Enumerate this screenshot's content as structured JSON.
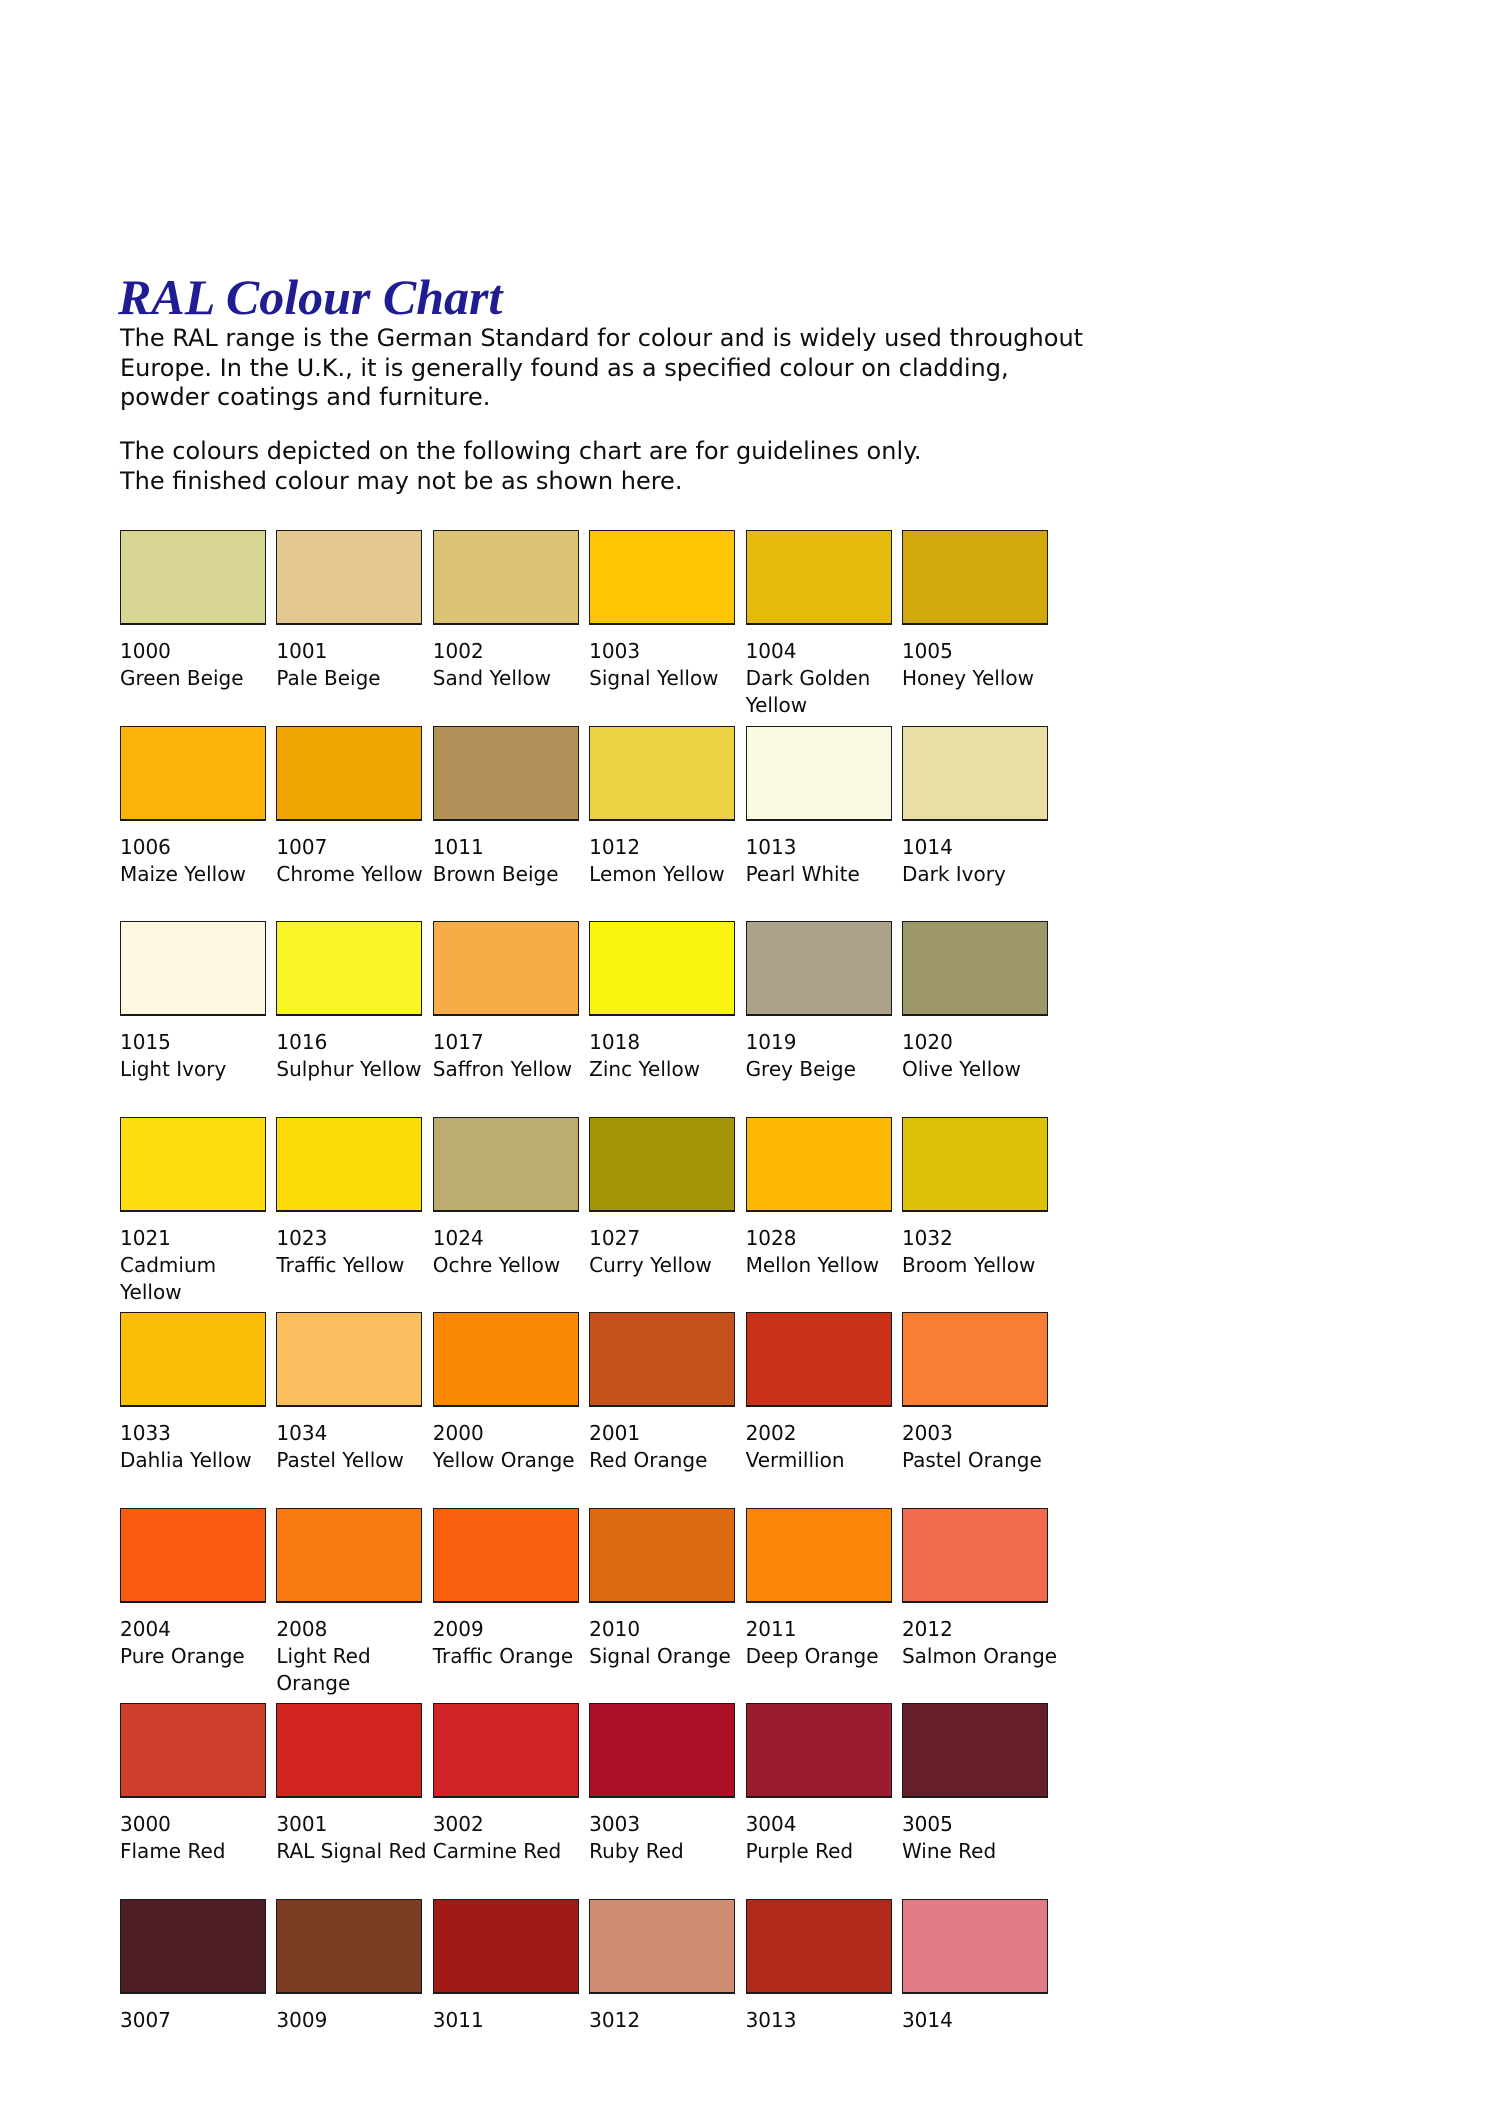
{
  "document": {
    "title": "RAL Colour Chart",
    "title_color": "#201D93",
    "intro": "The RAL range is the German Standard for colour and is widely used throughout\nEurope. In the U.K., it is generally found as a specified colour on cladding,\npowder coatings and furniture.",
    "note": "The colours depicted on the following chart are for guidelines only.\nThe finished colour may not be as shown here."
  },
  "palette": {
    "columns": 6,
    "swatch_border_color": "#1a1a1a",
    "swatches": [
      {
        "code": "1000",
        "name": "Green Beige",
        "color": "#D8D693"
      },
      {
        "code": "1001",
        "name": "Pale Beige",
        "color": "#E2C791"
      },
      {
        "code": "1002",
        "name": "Sand Yellow",
        "color": "#DDC375"
      },
      {
        "code": "1003",
        "name": "Signal Yellow",
        "color": "#FEC503"
      },
      {
        "code": "1004",
        "name": "Dark Golden Yellow",
        "color": "#E4BA0D"
      },
      {
        "code": "1005",
        "name": "Honey Yellow",
        "color": "#D2A90D"
      },
      {
        "code": "1006",
        "name": "Maize Yellow",
        "color": "#FAB306"
      },
      {
        "code": "1007",
        "name": "Chrome Yellow",
        "color": "#EFA603"
      },
      {
        "code": "1011",
        "name": "Brown Beige",
        "color": "#B5915A"
      },
      {
        "code": "1012",
        "name": "Lemon Yellow",
        "color": "#EBD345"
      },
      {
        "code": "1013",
        "name": "Pearl White",
        "color": "#FBF9E2"
      },
      {
        "code": "1014",
        "name": "Dark Ivory",
        "color": "#E8DFA6"
      },
      {
        "code": "1015",
        "name": "Light Ivory",
        "color": "#FDF8DF"
      },
      {
        "code": "1016",
        "name": "Sulphur Yellow",
        "color": "#FAF626"
      },
      {
        "code": "1017",
        "name": "Saffron Yellow",
        "color": "#F6AD47"
      },
      {
        "code": "1018",
        "name": "Zinc Yellow",
        "color": "#FAF30F"
      },
      {
        "code": "1019",
        "name": "Grey Beige",
        "color": "#ACA289"
      },
      {
        "code": "1020",
        "name": "Olive Yellow",
        "color": "#9D9869"
      },
      {
        "code": "1021",
        "name": "Cadmium Yellow",
        "color": "#FBDE0B"
      },
      {
        "code": "1023",
        "name": "Traffic Yellow",
        "color": "#FBDC06"
      },
      {
        "code": "1024",
        "name": "Ochre Yellow",
        "color": "#BCAC70"
      },
      {
        "code": "1027",
        "name": "Curry Yellow",
        "color": "#A29404"
      },
      {
        "code": "1028",
        "name": "Mellon Yellow",
        "color": "#FEB902"
      },
      {
        "code": "1032",
        "name": "Broom Yellow",
        "color": "#DCC10B"
      },
      {
        "code": "1033",
        "name": "Dahlia Yellow",
        "color": "#FBBD07"
      },
      {
        "code": "1034",
        "name": "Pastel Yellow",
        "color": "#FBBE5F"
      },
      {
        "code": "2000",
        "name": "Yellow Orange",
        "color": "#FA8A04"
      },
      {
        "code": "2001",
        "name": "Red Orange",
        "color": "#C4521A"
      },
      {
        "code": "2002",
        "name": "Vermillion",
        "color": "#CB3018"
      },
      {
        "code": "2003",
        "name": "Pastel Orange",
        "color": "#F87E35"
      },
      {
        "code": "2004",
        "name": "Pure Orange",
        "color": "#F95B10"
      },
      {
        "code": "2008",
        "name": "Light Red Orange",
        "color": "#F97913"
      },
      {
        "code": "2009",
        "name": "Traffic Orange",
        "color": "#F9610E"
      },
      {
        "code": "2010",
        "name": "Signal Orange",
        "color": "#DB6A10"
      },
      {
        "code": "2011",
        "name": "Deep Orange",
        "color": "#FB8605"
      },
      {
        "code": "2012",
        "name": "Salmon Orange",
        "color": "#EF6B4D"
      },
      {
        "code": "3000",
        "name": "Flame Red",
        "color": "#CE402B"
      },
      {
        "code": "3001",
        "name": "RAL Signal Red",
        "color": "#D12421"
      },
      {
        "code": "3002",
        "name": "Carmine Red",
        "color": "#CF2326"
      },
      {
        "code": "3003",
        "name": "Ruby Red",
        "color": "#AB1026"
      },
      {
        "code": "3004",
        "name": "Purple Red",
        "color": "#9B1B2F"
      },
      {
        "code": "3005",
        "name": "Wine Red",
        "color": "#671F2B"
      },
      {
        "code": "3007",
        "name": "",
        "color": "#4D1E25"
      },
      {
        "code": "3009",
        "name": "",
        "color": "#7B3C23"
      },
      {
        "code": "3011",
        "name": "",
        "color": "#A01B18"
      },
      {
        "code": "3012",
        "name": "",
        "color": "#CF8E74"
      },
      {
        "code": "3013",
        "name": "",
        "color": "#B12A1C"
      },
      {
        "code": "3014",
        "name": "",
        "color": "#E17C84"
      }
    ]
  }
}
